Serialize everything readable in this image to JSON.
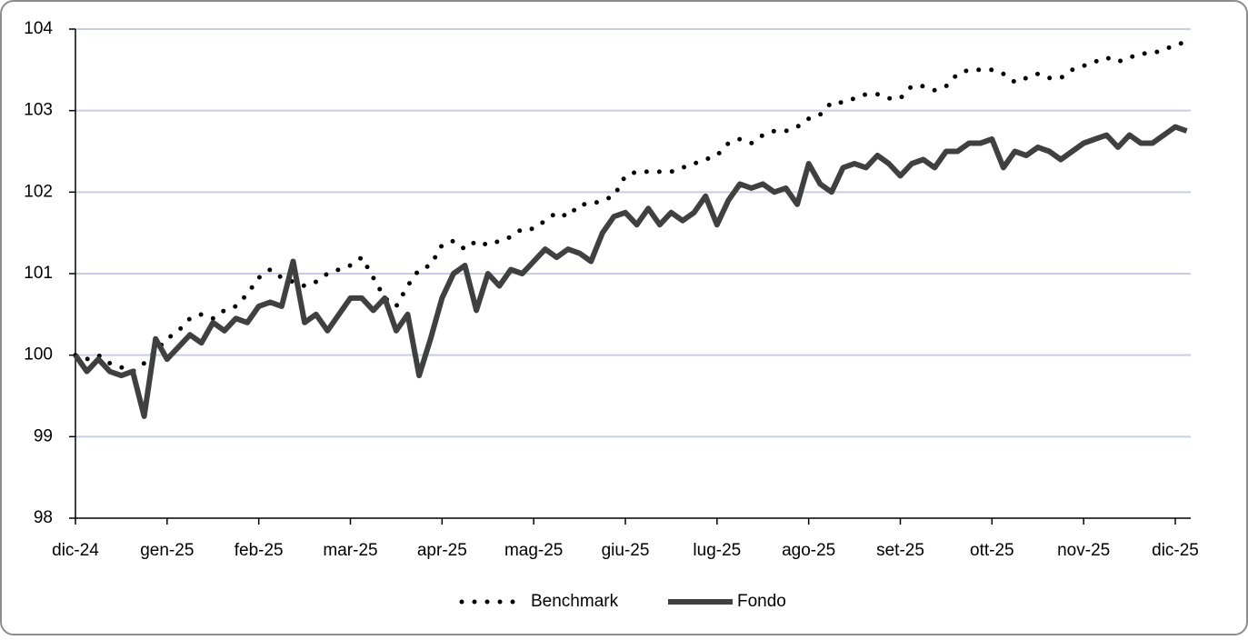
{
  "chart_data": {
    "type": "line",
    "categories": [
      "dic-24",
      null,
      null,
      null,
      null,
      null,
      null,
      null,
      "gen-25",
      null,
      null,
      null,
      null,
      null,
      null,
      null,
      "feb-25",
      null,
      null,
      null,
      null,
      null,
      null,
      null,
      "mar-25",
      null,
      null,
      null,
      null,
      null,
      null,
      null,
      "apr-25",
      null,
      null,
      null,
      null,
      null,
      null,
      null,
      "mag-25",
      null,
      null,
      null,
      null,
      null,
      null,
      null,
      "giu-25",
      null,
      null,
      null,
      null,
      null,
      null,
      null,
      "lug-25",
      null,
      null,
      null,
      null,
      null,
      null,
      null,
      "ago-25",
      null,
      null,
      null,
      null,
      null,
      null,
      null,
      "set-25",
      null,
      null,
      null,
      null,
      null,
      null,
      null,
      "ott-25",
      null,
      null,
      null,
      null,
      null,
      null,
      null,
      "nov-25",
      null,
      null,
      null,
      null,
      null,
      null,
      null,
      "dic-25",
      null
    ],
    "series": [
      {
        "name": "Benchmark",
        "color": "#000000",
        "style": "dotted",
        "values": [
          100.0,
          99.95,
          100.0,
          99.9,
          99.85,
          99.8,
          99.9,
          100.05,
          100.2,
          100.3,
          100.45,
          100.5,
          100.45,
          100.55,
          100.6,
          100.75,
          100.95,
          101.05,
          100.95,
          100.9,
          100.85,
          100.9,
          101.0,
          101.05,
          101.1,
          101.2,
          100.95,
          100.7,
          100.6,
          100.85,
          101.05,
          101.1,
          101.35,
          101.4,
          101.3,
          101.4,
          101.35,
          101.4,
          101.45,
          101.55,
          101.55,
          101.65,
          101.75,
          101.7,
          101.85,
          101.85,
          101.9,
          101.95,
          102.2,
          102.25,
          102.25,
          102.25,
          102.25,
          102.3,
          102.35,
          102.4,
          102.45,
          102.6,
          102.65,
          102.6,
          102.7,
          102.75,
          102.75,
          102.8,
          102.9,
          102.95,
          103.1,
          103.1,
          103.15,
          103.2,
          103.2,
          103.15,
          103.15,
          103.3,
          103.3,
          103.25,
          103.3,
          103.45,
          103.5,
          103.5,
          103.5,
          103.45,
          103.35,
          103.4,
          103.45,
          103.4,
          103.4,
          103.5,
          103.55,
          103.6,
          103.65,
          103.6,
          103.65,
          103.7,
          103.7,
          103.75,
          103.8,
          103.85
        ]
      },
      {
        "name": "Fondo",
        "color": "#404040",
        "style": "solid",
        "values": [
          100.0,
          99.8,
          99.95,
          99.8,
          99.75,
          99.8,
          99.25,
          100.2,
          99.95,
          100.1,
          100.25,
          100.15,
          100.4,
          100.3,
          100.45,
          100.4,
          100.6,
          100.65,
          100.6,
          101.15,
          100.4,
          100.5,
          100.3,
          100.5,
          100.7,
          100.7,
          100.55,
          100.7,
          100.3,
          100.5,
          99.75,
          100.2,
          100.7,
          101.0,
          101.1,
          100.55,
          101.0,
          100.85,
          101.05,
          101.0,
          101.15,
          101.3,
          101.2,
          101.3,
          101.25,
          101.15,
          101.5,
          101.7,
          101.75,
          101.6,
          101.8,
          101.6,
          101.75,
          101.65,
          101.75,
          101.95,
          101.6,
          101.9,
          102.1,
          102.05,
          102.1,
          102.0,
          102.05,
          101.85,
          102.35,
          102.1,
          102.0,
          102.3,
          102.35,
          102.3,
          102.45,
          102.35,
          102.2,
          102.35,
          102.4,
          102.3,
          102.5,
          102.5,
          102.6,
          102.6,
          102.65,
          102.3,
          102.5,
          102.45,
          102.55,
          102.5,
          102.4,
          102.5,
          102.6,
          102.65,
          102.7,
          102.55,
          102.7,
          102.6,
          102.6,
          102.7,
          102.8,
          102.75
        ]
      }
    ],
    "ylim": [
      98,
      104
    ],
    "yticks": [
      98,
      99,
      100,
      101,
      102,
      103,
      104
    ],
    "grid": true,
    "legend": "bottom"
  }
}
